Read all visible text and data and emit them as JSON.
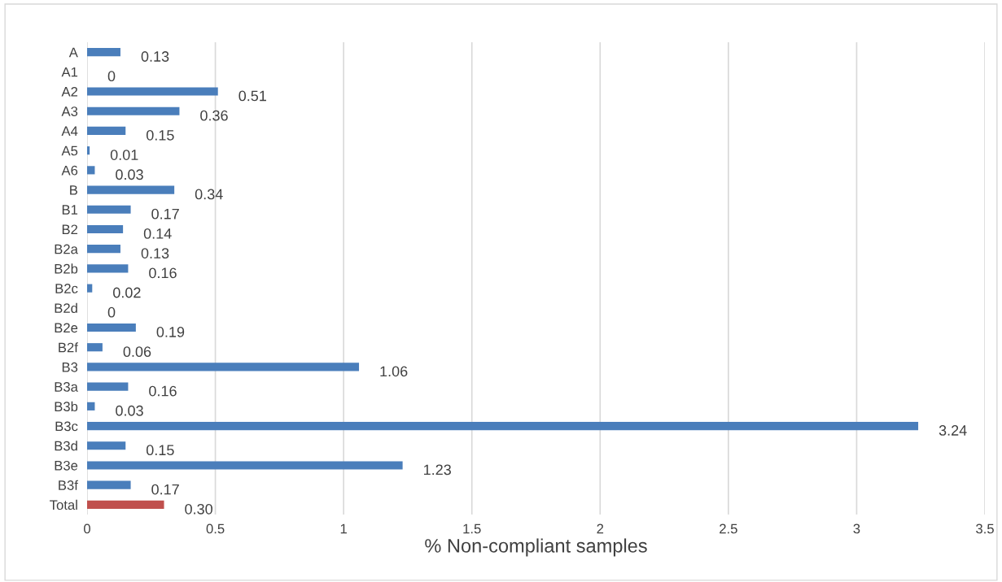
{
  "chart_data": {
    "type": "bar",
    "orientation": "horizontal",
    "xlabel": "% Non-compliant samples",
    "categories": [
      "A",
      "A1",
      "A2",
      "A3",
      "A4",
      "A5",
      "A6",
      "B",
      "B1",
      "B2",
      "B2a",
      "B2b",
      "B2c",
      "B2d",
      "B2e",
      "B2f",
      "B3",
      "B3a",
      "B3b",
      "B3c",
      "B3d",
      "B3e",
      "B3f",
      "Total"
    ],
    "values": [
      0.13,
      0,
      0.51,
      0.36,
      0.15,
      0.01,
      0.03,
      0.34,
      0.17,
      0.14,
      0.13,
      0.16,
      0.02,
      0,
      0.19,
      0.06,
      1.06,
      0.16,
      0.03,
      3.24,
      0.15,
      1.23,
      0.17,
      0.3
    ],
    "value_labels": [
      "0.13",
      "0",
      "0.51",
      "0.36",
      "0.15",
      "0.01",
      "0.03",
      "0.34",
      "0.17",
      "0.14",
      "0.13",
      "0.16",
      "0.02",
      "0",
      "0.19",
      "0.06",
      "1.06",
      "0.16",
      "0.03",
      "3.24",
      "0.15",
      "1.23",
      "0.17",
      "0.30"
    ],
    "colors": [
      "#4a7ebb",
      "#4a7ebb",
      "#4a7ebb",
      "#4a7ebb",
      "#4a7ebb",
      "#4a7ebb",
      "#4a7ebb",
      "#4a7ebb",
      "#4a7ebb",
      "#4a7ebb",
      "#4a7ebb",
      "#4a7ebb",
      "#4a7ebb",
      "#4a7ebb",
      "#4a7ebb",
      "#4a7ebb",
      "#4a7ebb",
      "#4a7ebb",
      "#4a7ebb",
      "#4a7ebb",
      "#4a7ebb",
      "#4a7ebb",
      "#4a7ebb",
      "#c0504d"
    ],
    "xlim": [
      0,
      3.5
    ],
    "xticks": [
      0,
      0.5,
      1,
      1.5,
      2,
      2.5,
      3,
      3.5
    ],
    "grid": "x"
  }
}
